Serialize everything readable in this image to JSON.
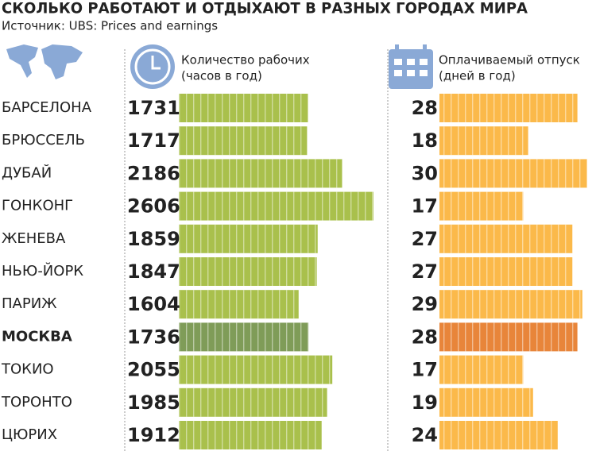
{
  "chart_data": {
    "type": "bar",
    "title": "СКОЛЬКО РАБОТАЮТ И ОТДЫХАЮТ В РАЗНЫХ ГОРОДАХ МИРА",
    "subtitle": "Источник: UBS: Prices and earnings",
    "categories": [
      "БАРСЕЛОНА",
      "БРЮССЕЛЬ",
      "ДУБАЙ",
      "ГОНКОНГ",
      "ЖЕНЕВА",
      "НЬЮ-ЙОРК",
      "ПАРИЖ",
      "МОСКВА",
      "ТОКИО",
      "ТОРОНТО",
      "ЦЮРИХ"
    ],
    "series": [
      {
        "name": [
          "Количество рабочих",
          "(часов в год)"
        ],
        "color": "#a9c04c",
        "colors": [
          "#a9c04c",
          "#a9c04c",
          "#a9c04c",
          "#a9c04c",
          "#a9c04c",
          "#a9c04c",
          "#a9c04c",
          "#7f9c58",
          "#a9c04c",
          "#a9c04c",
          "#a9c04c"
        ],
        "values": [
          1731,
          1717,
          2186,
          2606,
          1859,
          1847,
          1604,
          1736,
          2055,
          1985,
          1912
        ]
      },
      {
        "name": [
          "Оплачиваемый отпуск",
          "(дней в год)"
        ],
        "color": "#fbb94a",
        "colors": [
          "#fbb94a",
          "#fbb94a",
          "#fbb94a",
          "#fbb94a",
          "#fbb94a",
          "#fbb94a",
          "#fbb94a",
          "#e8853a",
          "#fbb94a",
          "#fbb94a",
          "#fbb94a"
        ],
        "values": [
          28,
          18,
          30,
          17,
          27,
          27,
          29,
          28,
          17,
          19,
          24
        ]
      }
    ]
  }
}
